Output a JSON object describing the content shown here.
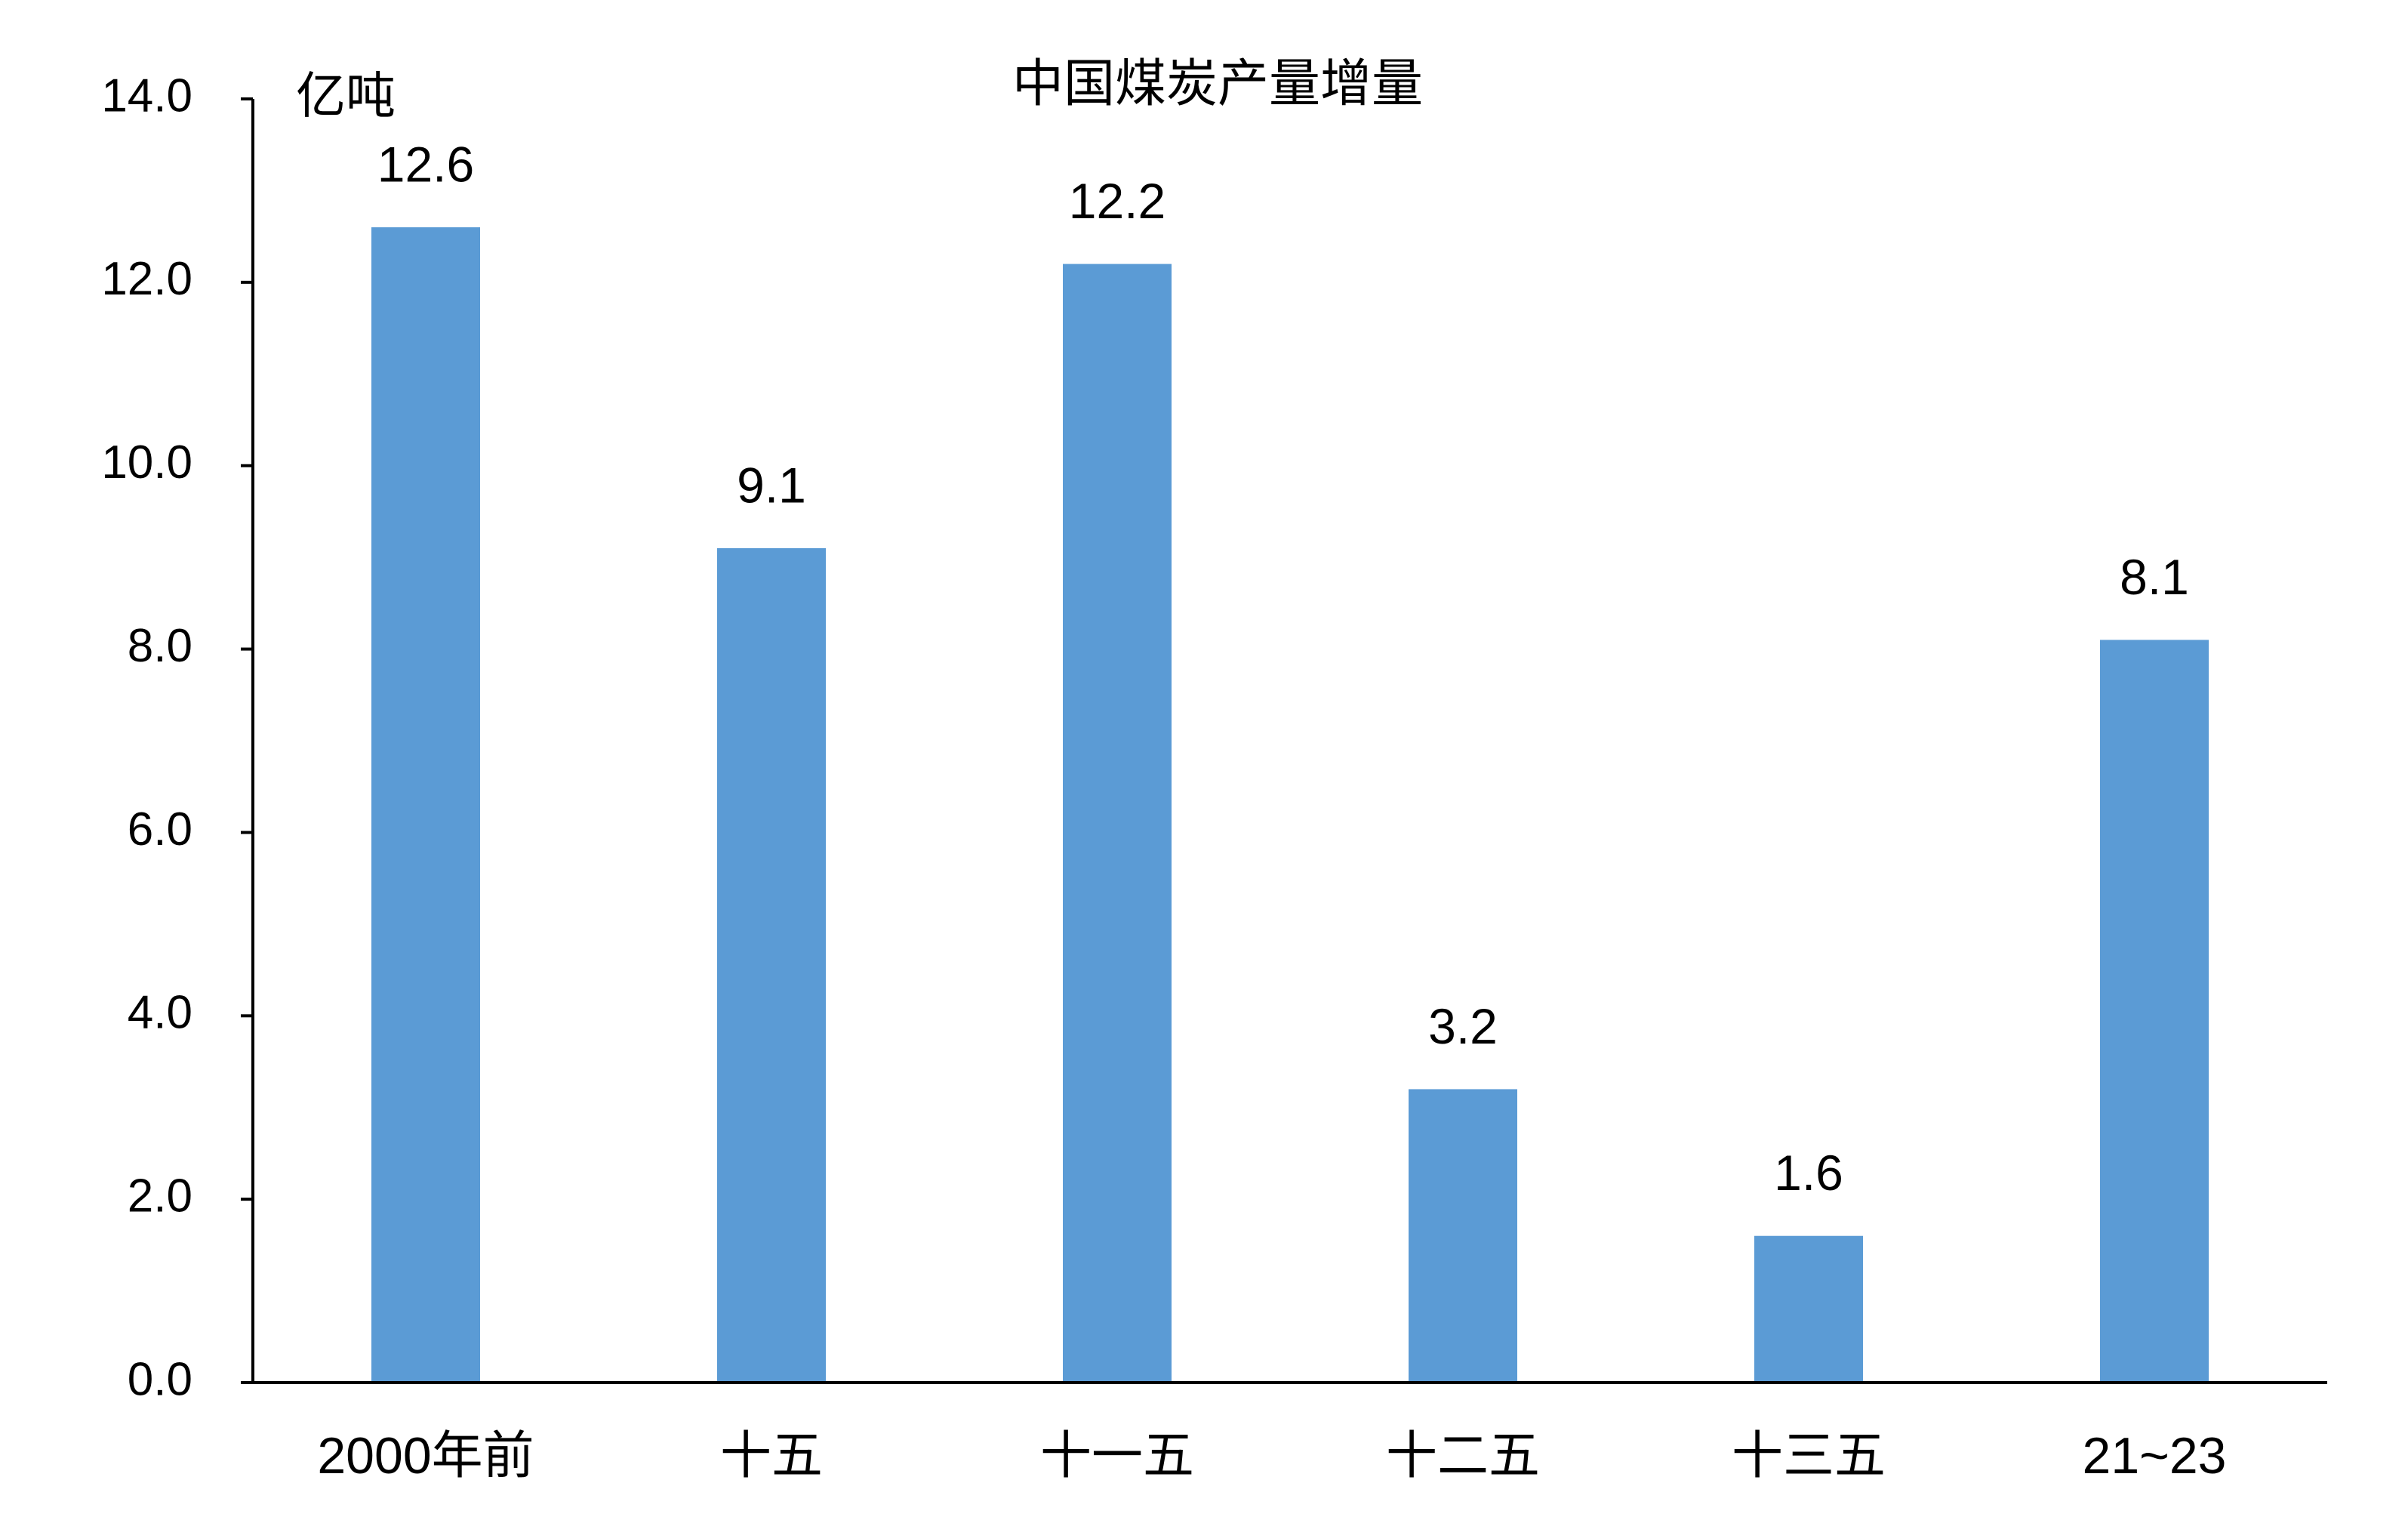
{
  "chart_data": {
    "type": "bar",
    "title": "中国煤炭产量增量",
    "y_unit": "亿吨",
    "categories": [
      "2000年前",
      "十五",
      "十一五",
      "十二五",
      "十三五",
      "21~23"
    ],
    "values": [
      12.6,
      9.1,
      12.2,
      3.2,
      1.6,
      8.1
    ],
    "color": "#5b9bd5",
    "ylim": [
      0,
      14
    ],
    "yticks": [
      {
        "value": 0,
        "label": "0.0"
      },
      {
        "value": 2,
        "label": "2.0"
      },
      {
        "value": 4,
        "label": "4.0"
      },
      {
        "value": 6,
        "label": "6.0"
      },
      {
        "value": 8,
        "label": "8.0"
      },
      {
        "value": 10,
        "label": "10.0"
      },
      {
        "value": 12,
        "label": "12.0"
      },
      {
        "value": 14,
        "label": "14.0"
      }
    ],
    "grid": false
  }
}
